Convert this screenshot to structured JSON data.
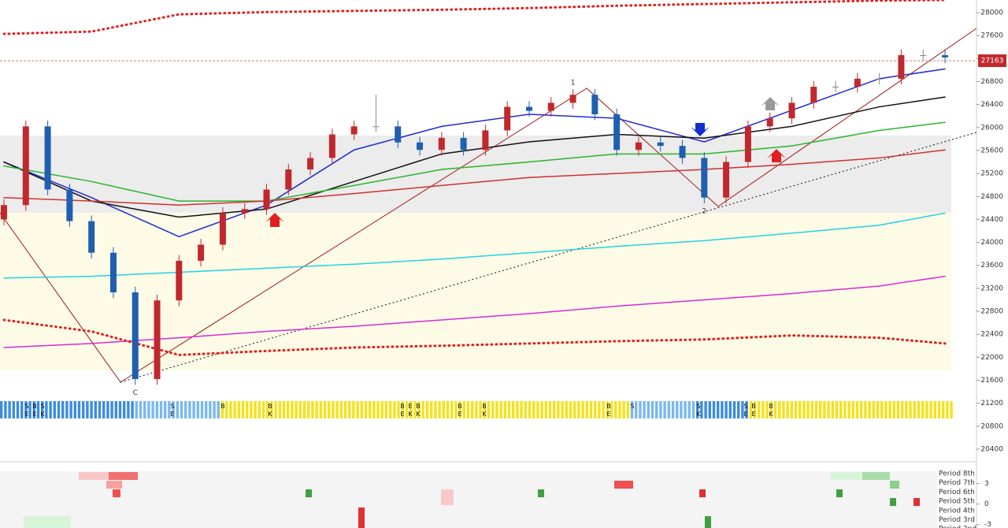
{
  "chart_data": {
    "type": "candlestick",
    "ylim": [
      20180,
      28220
    ],
    "yticks": [
      28000,
      27600,
      27200,
      26800,
      26400,
      26000,
      25600,
      25200,
      24800,
      24400,
      24000,
      23600,
      23200,
      22800,
      22400,
      22000,
      21600,
      21200,
      20800,
      20400
    ],
    "last_price": 27163,
    "up_color": "#c0282d",
    "down_color": "#1f5fb0",
    "ohlc": [
      [
        24400,
        24750,
        24300,
        24650
      ],
      [
        24650,
        26120,
        24550,
        26020
      ],
      [
        26020,
        26120,
        24820,
        24920
      ],
      [
        24920,
        25020,
        24270,
        24370
      ],
      [
        24370,
        24470,
        23720,
        23820
      ],
      [
        23820,
        23920,
        23030,
        23130
      ],
      [
        23130,
        23230,
        21520,
        21620
      ],
      [
        21620,
        23090,
        21520,
        22990
      ],
      [
        22990,
        23780,
        22890,
        23680
      ],
      [
        23680,
        24060,
        23580,
        23960
      ],
      [
        23960,
        24610,
        23860,
        24510
      ],
      [
        24510,
        24680,
        24410,
        24580
      ],
      [
        24580,
        25020,
        24480,
        24920
      ],
      [
        24920,
        25370,
        24820,
        25270
      ],
      [
        25270,
        25570,
        25170,
        25470
      ],
      [
        25470,
        25980,
        25370,
        25880
      ],
      [
        25880,
        26120,
        25780,
        26020
      ],
      [
        26020,
        26570,
        25920,
        26020
      ],
      [
        26020,
        26120,
        25640,
        25740
      ],
      [
        25740,
        25840,
        25510,
        25610
      ],
      [
        25610,
        25920,
        25510,
        25820
      ],
      [
        25820,
        25920,
        25510,
        25610
      ],
      [
        25610,
        26050,
        25510,
        25950
      ],
      [
        25950,
        26460,
        25850,
        26360
      ],
      [
        26360,
        26460,
        26190,
        26290
      ],
      [
        26290,
        26530,
        26190,
        26430
      ],
      [
        26430,
        26670,
        26330,
        26570
      ],
      [
        26570,
        26670,
        26130,
        26230
      ],
      [
        26230,
        26330,
        25510,
        25610
      ],
      [
        25610,
        25840,
        25510,
        25740
      ],
      [
        25740,
        25840,
        25580,
        25680
      ],
      [
        25680,
        25780,
        25370,
        25470
      ],
      [
        25470,
        25570,
        24680,
        24780
      ],
      [
        24780,
        25500,
        24680,
        25400
      ],
      [
        25400,
        26120,
        25300,
        26020
      ],
      [
        26020,
        26260,
        25920,
        26160
      ],
      [
        26160,
        26530,
        26060,
        26430
      ],
      [
        26430,
        26810,
        26330,
        26710
      ],
      [
        26710,
        26810,
        26610,
        26710
      ],
      [
        26710,
        26950,
        26610,
        26850
      ],
      [
        26850,
        26950,
        26750,
        26850
      ],
      [
        26850,
        27360,
        26750,
        27260
      ],
      [
        27260,
        27360,
        27160,
        27260
      ],
      [
        27260,
        27360,
        27120,
        27220
      ]
    ],
    "x": [
      0,
      4,
      8,
      12,
      16,
      20,
      24,
      28,
      32,
      36,
      40,
      43
    ],
    "series": [
      {
        "color": "#1f2bd6",
        "values": [
          25400,
          24780,
          24100,
          24650,
          25610,
          26020,
          26230,
          26160,
          25750,
          26300,
          26850,
          27020
        ]
      },
      {
        "color": "#111111",
        "values": [
          25400,
          24720,
          24440,
          24580,
          25060,
          25540,
          25750,
          25880,
          25815,
          26020,
          26360,
          26530
        ]
      },
      {
        "color": "#2bb52b",
        "values": [
          25330,
          25060,
          24720,
          24720,
          24990,
          25270,
          25400,
          25540,
          25540,
          25680,
          25950,
          26090
        ]
      },
      {
        "color": "#d03030",
        "values": [
          24780,
          24720,
          24650,
          24720,
          24850,
          24990,
          25130,
          25200,
          25270,
          25360,
          25470,
          25610
        ]
      },
      {
        "color": "#22d3e0",
        "values": [
          23380,
          23410,
          23480,
          23550,
          23620,
          23710,
          23820,
          23930,
          24030,
          24160,
          24300,
          24510
        ]
      },
      {
        "color": "#d62bd6",
        "values": [
          22170,
          22240,
          22340,
          22450,
          22540,
          22650,
          22760,
          22890,
          23000,
          23110,
          23240,
          23410
        ]
      },
      {
        "color": "#e02020",
        "dotted": true,
        "values": [
          27630,
          27670,
          27970,
          28010,
          28030,
          28050,
          28080,
          28120,
          28150,
          28180,
          28210,
          28220
        ]
      },
      {
        "color": "#e02020",
        "dotted": true,
        "values": [
          22650,
          22450,
          22040,
          22110,
          22170,
          22200,
          22240,
          22280,
          22310,
          22380,
          22340,
          22240
        ]
      }
    ],
    "pivot_labels": [
      "C",
      "1",
      "2"
    ],
    "signals": [
      "SE",
      "BE",
      "SK",
      "SE",
      "B",
      "BK",
      "BE",
      "EK",
      "BK",
      "BE",
      "BK",
      "BE",
      "S",
      "SK",
      "SE",
      "BE",
      "BK"
    ],
    "period_labels": [
      "Period 8th",
      "Period 7th",
      "Period 6th",
      "Period 5th",
      "Period 4th",
      "Period 3rd",
      "Period 2nd"
    ],
    "osc_ylim": [
      -3.5,
      4.8
    ],
    "osc_yticks": [
      3,
      0,
      -3
    ]
  }
}
